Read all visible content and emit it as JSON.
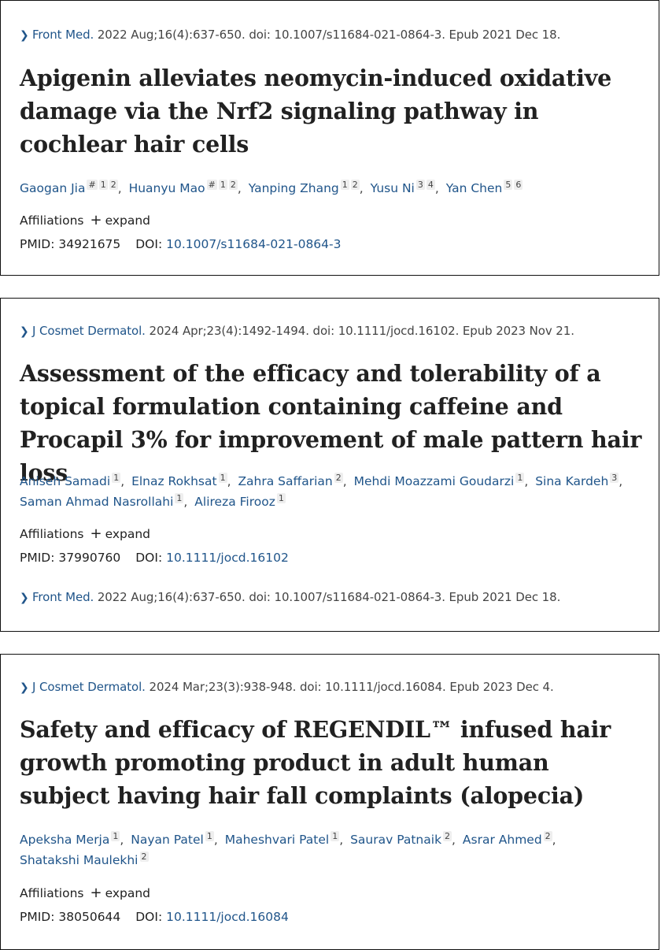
{
  "articles": [
    {
      "journal": "Front Med.",
      "citation": " 2022 Aug;16(4):637-650. doi: 10.1007/s11684-021-0864-3. Epub 2021 Dec 18.",
      "title": "Apigenin alleviates neomycin-induced oxidative damage via the Nrf2 signaling pathway in cochlear hair cells",
      "authors": [
        {
          "name": "Gaogan Jia",
          "sups": [
            "#",
            "1",
            "2"
          ]
        },
        {
          "name": "Huanyu Mao",
          "sups": [
            "#",
            "1",
            "2"
          ]
        },
        {
          "name": "Yanping Zhang",
          "sups": [
            "1",
            "2"
          ]
        },
        {
          "name": "Yusu Ni",
          "sups": [
            "3",
            "4"
          ]
        },
        {
          "name": "Yan Chen",
          "sups": [
            "5",
            "6"
          ]
        }
      ],
      "affiliations_label": "Affiliations",
      "expand_label": "expand",
      "pmid_label": "PMID:",
      "pmid": "34921675",
      "doi_label": "DOI:",
      "doi": "10.1007/s11684-021-0864-3"
    },
    {
      "journal": "J Cosmet Dermatol.",
      "citation": " 2024 Apr;23(4):1492-1494. doi: 10.1111/jocd.16102. Epub 2023 Nov 21.",
      "title": "Assessment of the efficacy and tolerability of a topical formulation containing caffeine and Procapil 3% for improvement of male pattern hair loss",
      "authors": [
        {
          "name": "Aniseh Samadi",
          "sups": [
            "1"
          ]
        },
        {
          "name": "Elnaz Rokhsat",
          "sups": [
            "1"
          ]
        },
        {
          "name": "Zahra Saffarian",
          "sups": [
            "2"
          ]
        },
        {
          "name": "Mehdi Moazzami Goudarzi",
          "sups": [
            "1"
          ]
        },
        {
          "name": "Sina Kardeh",
          "sups": [
            "3"
          ]
        },
        {
          "name": "Saman Ahmad Nasrollahi",
          "sups": [
            "1"
          ]
        },
        {
          "name": "Alireza Firooz",
          "sups": [
            "1"
          ]
        }
      ],
      "affiliations_label": "Affiliations",
      "expand_label": "expand",
      "pmid_label": "PMID:",
      "pmid": "37990760",
      "doi_label": "DOI:",
      "doi": "10.1111/jocd.16102",
      "extra_journal": "Front Med.",
      "extra_citation": " 2022 Aug;16(4):637-650. doi: 10.1007/s11684-021-0864-3. Epub 2021 Dec 18."
    },
    {
      "journal": "J Cosmet Dermatol.",
      "citation": " 2024 Mar;23(3):938-948. doi: 10.1111/jocd.16084. Epub 2023 Dec 4.",
      "title": "Safety and efficacy of REGENDIL™ infused hair growth promoting product in adult human subject having hair fall complaints (alopecia)",
      "authors": [
        {
          "name": "Apeksha Merja",
          "sups": [
            "1"
          ]
        },
        {
          "name": "Nayan Patel",
          "sups": [
            "1"
          ]
        },
        {
          "name": "Maheshvari Patel",
          "sups": [
            "1"
          ]
        },
        {
          "name": "Saurav Patnaik",
          "sups": [
            "2"
          ]
        },
        {
          "name": "Asrar Ahmed",
          "sups": [
            "2"
          ]
        },
        {
          "name": "Shatakshi Maulekhi",
          "sups": [
            "2"
          ]
        }
      ],
      "affiliations_label": "Affiliations",
      "expand_label": "expand",
      "pmid_label": "PMID:",
      "pmid": "38050644",
      "doi_label": "DOI:",
      "doi": "10.1111/jocd.16084"
    }
  ]
}
